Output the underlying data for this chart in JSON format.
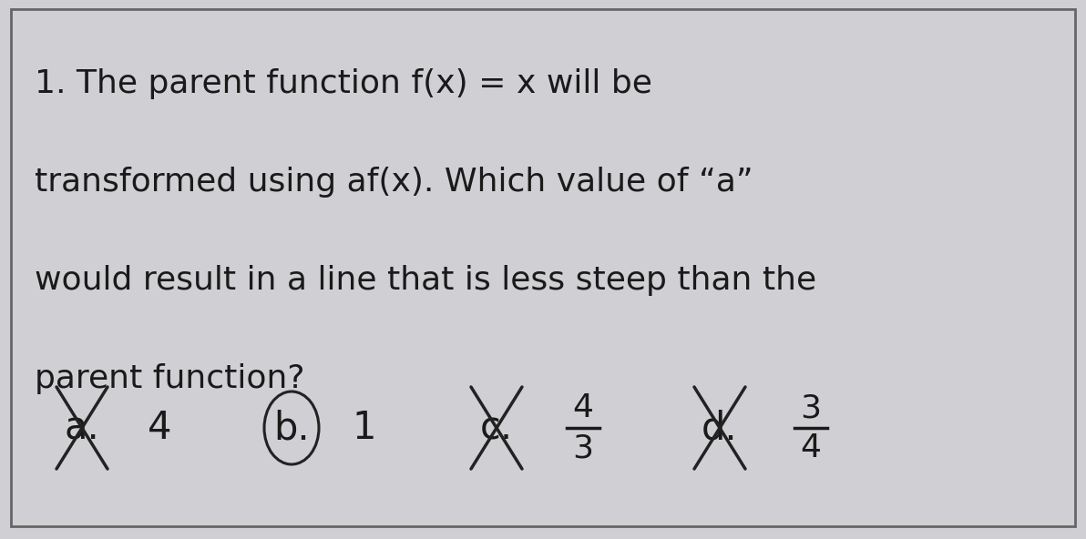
{
  "background_color": "#d0d0d4",
  "border_color": "#666666",
  "text_color": "#1a1a1a",
  "question_lines": [
    "1. The parent function f(x) = x will be",
    "transformed using af(x). Which value of “a”",
    "would result in a line that is less steep than the",
    "parent function?"
  ],
  "opt_a_label": "a.",
  "opt_a_value": "4",
  "opt_b_label": "b.",
  "opt_b_value": "1",
  "opt_c_label": "c.",
  "opt_c_num": "4",
  "opt_c_den": "3",
  "opt_d_label": "d.",
  "opt_d_num": "3",
  "opt_d_den": "4",
  "fig_width": 11.92,
  "fig_height": 5.92,
  "dpi": 100
}
